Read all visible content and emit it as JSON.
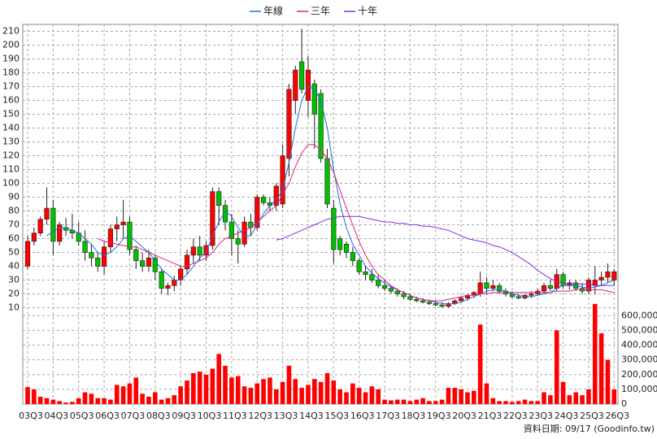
{
  "chart_data": [
    {
      "type": "candlestick",
      "legend": "top",
      "grid": true,
      "up_color": "#ff0000",
      "down_color": "#00c000",
      "categories": [
        "03Q3",
        null,
        null,
        null,
        "04Q3",
        null,
        null,
        null,
        "05Q3",
        null,
        null,
        null,
        "06Q3",
        null,
        null,
        null,
        "07Q3",
        null,
        null,
        null,
        "08Q3",
        null,
        null,
        null,
        "09Q3",
        null,
        null,
        null,
        "10Q3",
        null,
        null,
        null,
        "11Q3",
        null,
        null,
        null,
        "12Q3",
        null,
        null,
        null,
        "13Q3",
        null,
        null,
        null,
        "14Q3",
        null,
        null,
        null,
        "15Q3",
        null,
        null,
        null,
        "16Q3",
        null,
        null,
        null,
        "17Q3",
        null,
        null,
        null,
        "18Q3",
        null,
        null,
        null,
        "19Q3",
        null,
        null,
        null,
        "20Q3",
        null,
        null,
        null,
        "21Q3",
        null,
        null,
        null,
        "22Q3",
        null,
        null,
        null,
        "23Q3",
        null,
        null,
        null,
        "24Q3",
        null,
        null,
        null,
        "25Q3",
        null,
        null,
        null,
        "26Q3"
      ],
      "ohlc": [
        [
          40,
          62,
          38,
          58
        ],
        [
          58,
          68,
          55,
          64
        ],
        [
          64,
          76,
          62,
          74
        ],
        [
          74,
          97,
          70,
          82
        ],
        [
          82,
          88,
          48,
          58
        ],
        [
          58,
          72,
          55,
          70
        ],
        [
          68,
          75,
          62,
          66
        ],
        [
          66,
          78,
          60,
          64
        ],
        [
          64,
          72,
          55,
          58
        ],
        [
          58,
          66,
          44,
          50
        ],
        [
          50,
          56,
          40,
          46
        ],
        [
          46,
          50,
          36,
          40
        ],
        [
          40,
          58,
          34,
          54
        ],
        [
          54,
          70,
          50,
          67
        ],
        [
          67,
          76,
          58,
          70
        ],
        [
          70,
          88,
          60,
          72
        ],
        [
          72,
          76,
          48,
          52
        ],
        [
          52,
          55,
          38,
          44
        ],
        [
          44,
          50,
          36,
          40
        ],
        [
          40,
          52,
          36,
          46
        ],
        [
          46,
          48,
          30,
          36
        ],
        [
          36,
          38,
          20,
          24
        ],
        [
          24,
          28,
          19,
          26
        ],
        [
          26,
          33,
          22,
          30
        ],
        [
          30,
          40,
          26,
          38
        ],
        [
          38,
          52,
          34,
          48
        ],
        [
          48,
          60,
          42,
          54
        ],
        [
          54,
          62,
          44,
          48
        ],
        [
          48,
          58,
          44,
          55
        ],
        [
          55,
          97,
          52,
          94
        ],
        [
          94,
          97,
          70,
          84
        ],
        [
          84,
          88,
          66,
          72
        ],
        [
          72,
          78,
          48,
          60
        ],
        [
          60,
          66,
          42,
          56
        ],
        [
          56,
          76,
          54,
          72
        ],
        [
          72,
          78,
          62,
          68
        ],
        [
          68,
          92,
          66,
          90
        ],
        [
          90,
          92,
          84,
          86
        ],
        [
          86,
          90,
          80,
          84
        ],
        [
          84,
          100,
          80,
          98
        ],
        [
          85,
          128,
          82,
          120
        ],
        [
          118,
          172,
          105,
          168
        ],
        [
          160,
          185,
          150,
          182
        ],
        [
          188,
          212,
          165,
          168
        ],
        [
          160,
          192,
          148,
          182
        ],
        [
          172,
          175,
          125,
          150
        ],
        [
          165,
          168,
          115,
          118
        ],
        [
          118,
          125,
          82,
          85
        ],
        [
          82,
          88,
          42,
          52
        ],
        [
          60,
          62,
          48,
          52
        ],
        [
          56,
          58,
          46,
          50
        ],
        [
          50,
          54,
          40,
          44
        ],
        [
          44,
          46,
          34,
          36
        ],
        [
          36,
          40,
          30,
          34
        ],
        [
          34,
          38,
          28,
          30
        ],
        [
          30,
          34,
          24,
          26
        ],
        [
          26,
          30,
          22,
          24
        ],
        [
          24,
          26,
          20,
          22
        ],
        [
          22,
          24,
          18,
          20
        ],
        [
          20,
          22,
          16,
          18
        ],
        [
          18,
          20,
          15,
          16
        ],
        [
          16,
          18,
          14,
          15
        ],
        [
          15,
          17,
          13,
          14
        ],
        [
          14,
          16,
          12,
          13
        ],
        [
          13,
          15,
          11,
          12
        ],
        [
          12,
          14,
          10,
          11
        ],
        [
          11,
          14,
          10,
          13
        ],
        [
          13,
          16,
          12,
          15
        ],
        [
          15,
          18,
          14,
          17
        ],
        [
          17,
          20,
          15,
          19
        ],
        [
          19,
          22,
          17,
          21
        ],
        [
          20,
          36,
          18,
          28
        ],
        [
          28,
          32,
          20,
          24
        ],
        [
          24,
          30,
          22,
          26
        ],
        [
          26,
          28,
          20,
          22
        ],
        [
          22,
          24,
          18,
          20
        ],
        [
          20,
          22,
          17,
          18
        ],
        [
          18,
          20,
          16,
          17
        ],
        [
          17,
          20,
          16,
          19
        ],
        [
          19,
          22,
          17,
          20
        ],
        [
          20,
          24,
          19,
          22
        ],
        [
          22,
          28,
          20,
          26
        ],
        [
          26,
          30,
          22,
          24
        ],
        [
          24,
          38,
          22,
          34
        ],
        [
          34,
          36,
          24,
          26
        ],
        [
          26,
          30,
          23,
          28
        ],
        [
          28,
          30,
          22,
          24
        ],
        [
          24,
          28,
          20,
          22
        ],
        [
          22,
          32,
          20,
          30
        ],
        [
          26,
          40,
          20,
          30
        ],
        [
          30,
          36,
          26,
          32
        ],
        [
          32,
          42,
          28,
          36
        ],
        [
          30,
          38,
          26,
          36
        ]
      ],
      "series": [
        {
          "name": "年線",
          "color": "#1e6fd9",
          "values": [
            null,
            null,
            null,
            62,
            65,
            68,
            68,
            66,
            64,
            60,
            56,
            50,
            48,
            50,
            54,
            60,
            62,
            58,
            54,
            50,
            44,
            38,
            34,
            30,
            30,
            34,
            40,
            46,
            50,
            62,
            72,
            80,
            76,
            68,
            62,
            62,
            70,
            78,
            84,
            88,
            95,
            115,
            140,
            160,
            170,
            168,
            160,
            140,
            110,
            85,
            68,
            56,
            48,
            40,
            35,
            31,
            28,
            25,
            23,
            21,
            19,
            17,
            16,
            15,
            14,
            13,
            12.5,
            13,
            14,
            16,
            18,
            20,
            22,
            23,
            23,
            22,
            20,
            19,
            18,
            18,
            19,
            20,
            21,
            24,
            26,
            26,
            26,
            25,
            24,
            25,
            26,
            28,
            30
          ]
        },
        {
          "name": "三年",
          "color": "#e0207a",
          "values": [
            null,
            null,
            null,
            null,
            null,
            null,
            null,
            null,
            null,
            null,
            null,
            60,
            58,
            57,
            56,
            55,
            54,
            54,
            52,
            50,
            48,
            46,
            44,
            42,
            40,
            40,
            42,
            44,
            46,
            50,
            56,
            60,
            62,
            64,
            66,
            68,
            72,
            76,
            80,
            84,
            92,
            100,
            112,
            122,
            128,
            128,
            124,
            118,
            108,
            95,
            82,
            70,
            58,
            48,
            40,
            34,
            30,
            26,
            23,
            21,
            19,
            17,
            16,
            15,
            15,
            15,
            16,
            17,
            18,
            19,
            19,
            20,
            20,
            21,
            21,
            21,
            21,
            21,
            21,
            21,
            21,
            21,
            21,
            22,
            22,
            22,
            23,
            23,
            23,
            23,
            23,
            22,
            21
          ]
        },
        {
          "name": "十年",
          "color": "#8a2be2",
          "values": [
            null,
            null,
            null,
            null,
            null,
            null,
            null,
            null,
            null,
            null,
            null,
            null,
            null,
            null,
            null,
            null,
            null,
            null,
            null,
            null,
            null,
            null,
            null,
            null,
            null,
            null,
            null,
            null,
            null,
            null,
            null,
            null,
            null,
            null,
            null,
            null,
            null,
            null,
            null,
            59,
            60,
            62,
            64,
            66,
            68,
            70,
            72,
            74,
            75,
            76,
            76,
            76,
            76,
            75,
            74,
            73,
            72,
            72,
            71,
            71,
            70,
            70,
            69,
            69,
            68,
            67,
            66,
            64,
            62,
            60,
            59,
            58,
            57,
            55,
            54,
            52,
            50,
            47,
            44,
            41,
            37,
            34,
            31,
            29,
            28,
            27,
            27,
            27,
            27,
            26,
            26,
            26,
            26
          ]
        }
      ],
      "ylim": [
        5,
        215
      ],
      "yticks": [
        10,
        20,
        30,
        40,
        50,
        60,
        70,
        80,
        90,
        100,
        110,
        120,
        130,
        140,
        150,
        160,
        170,
        180,
        190,
        200,
        210
      ]
    },
    {
      "type": "bar",
      "color": "#ff0000",
      "grid": true,
      "values": [
        115000,
        100000,
        50000,
        40000,
        30000,
        20000,
        10000,
        15000,
        40000,
        80000,
        70000,
        40000,
        40000,
        30000,
        130000,
        120000,
        140000,
        180000,
        70000,
        50000,
        80000,
        30000,
        40000,
        60000,
        120000,
        160000,
        210000,
        220000,
        200000,
        240000,
        340000,
        260000,
        180000,
        190000,
        120000,
        110000,
        140000,
        170000,
        180000,
        100000,
        150000,
        260000,
        170000,
        110000,
        130000,
        170000,
        150000,
        210000,
        160000,
        100000,
        80000,
        140000,
        110000,
        80000,
        120000,
        100000,
        30000,
        25000,
        30000,
        30000,
        20000,
        30000,
        40000,
        20000,
        20000,
        30000,
        110000,
        110000,
        100000,
        80000,
        90000,
        540000,
        140000,
        40000,
        20000,
        20000,
        15000,
        20000,
        30000,
        20000,
        20000,
        80000,
        60000,
        500000,
        150000,
        60000,
        80000,
        60000,
        100000,
        680000,
        480000,
        300000,
        100000
      ],
      "ylim": [
        0,
        690000
      ],
      "yticks": [
        0,
        {
          "value": 100000,
          "label": "100,000"
        },
        {
          "value": 200000,
          "label": "200,000"
        },
        {
          "value": 300000,
          "label": "300,000"
        },
        {
          "value": 400000,
          "label": "400,000"
        },
        {
          "value": 500000,
          "label": "500,000"
        },
        {
          "value": 600000,
          "label": "600,000"
        }
      ]
    }
  ],
  "footer": "資料日期: 09/17  (Goodinfo.tw)"
}
